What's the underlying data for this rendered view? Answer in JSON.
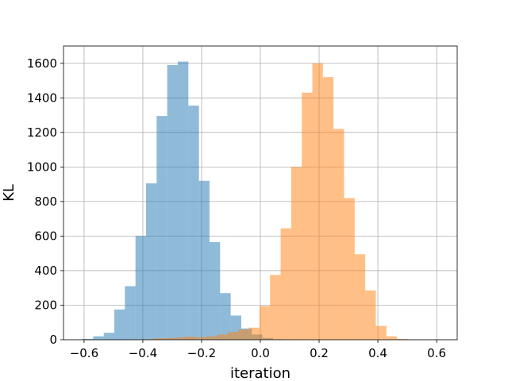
{
  "chart_data": {
    "type": "bar",
    "histogram": true,
    "title": "",
    "xlabel": "iteration",
    "ylabel": "KL",
    "xlim": [
      -0.67,
      0.67
    ],
    "ylim": [
      0,
      1700
    ],
    "grid": true,
    "x_ticks": [
      -0.6,
      -0.4,
      -0.2,
      0.0,
      0.2,
      0.4,
      0.6
    ],
    "x_tick_labels": [
      "−0.6",
      "−0.4",
      "−0.2",
      "0.0",
      "0.2",
      "0.4",
      "0.6"
    ],
    "y_ticks": [
      0,
      200,
      400,
      600,
      800,
      1000,
      1200,
      1400,
      1600
    ],
    "y_tick_labels": [
      "0",
      "200",
      "400",
      "600",
      "800",
      "1000",
      "1200",
      "1400",
      "1600"
    ],
    "bar_alpha": 0.5,
    "series": [
      {
        "color": "#1f77b4",
        "bin_edges": [
          -0.605,
          -0.569,
          -0.533,
          -0.497,
          -0.461,
          -0.425,
          -0.389,
          -0.353,
          -0.317,
          -0.281,
          -0.245,
          -0.209,
          -0.173,
          -0.137,
          -0.101,
          -0.065,
          -0.029,
          0.007,
          0.043,
          0.079,
          0.115,
          0.151,
          0.187
        ],
        "values": [
          5,
          20,
          40,
          175,
          310,
          600,
          905,
          1295,
          1590,
          1610,
          1355,
          920,
          565,
          270,
          140,
          65,
          30,
          10,
          3,
          1,
          1,
          0
        ]
      },
      {
        "color": "#ff7f0e",
        "bin_edges": [
          -0.435,
          -0.399,
          -0.363,
          -0.327,
          -0.291,
          -0.255,
          -0.219,
          -0.183,
          -0.147,
          -0.111,
          -0.075,
          -0.039,
          -0.003,
          0.033,
          0.069,
          0.105,
          0.141,
          0.177,
          0.213,
          0.249,
          0.285,
          0.321,
          0.357,
          0.393,
          0.429,
          0.465,
          0.501,
          0.537,
          0.573,
          0.609
        ],
        "values": [
          1,
          3,
          8,
          10,
          14,
          18,
          15,
          20,
          30,
          45,
          60,
          70,
          195,
          375,
          645,
          1000,
          1430,
          1600,
          1520,
          1220,
          820,
          495,
          285,
          80,
          20,
          5,
          2,
          1,
          1
        ]
      }
    ]
  }
}
